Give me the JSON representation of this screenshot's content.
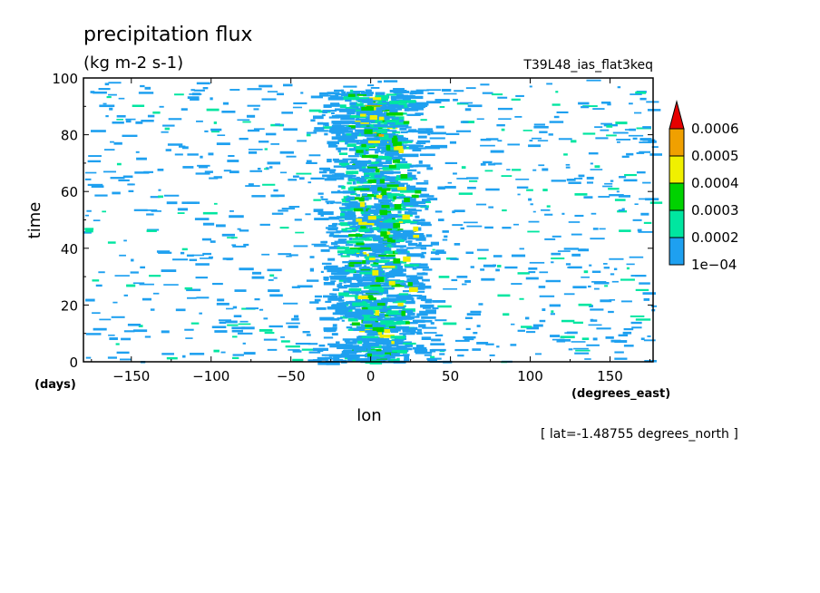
{
  "chart_data": {
    "type": "heatmap",
    "title": "precipitation flux",
    "units": "(kg m-2 s-1)",
    "dataset": "T39L48_ias_flat3keq",
    "xlabel": "lon",
    "x_units": "(degrees_east)",
    "ylabel": "time",
    "y_units": "(days)",
    "footnote": "[ lat=-1.48755 degrees_north ]",
    "xlim": [
      -180,
      177
    ],
    "ylim": [
      0,
      100
    ],
    "x_ticks": [
      -150,
      -100,
      -50,
      0,
      50,
      100,
      150
    ],
    "y_ticks": [
      0,
      20,
      40,
      60,
      80,
      100
    ],
    "colorbar": {
      "levels": [
        "1e-04",
        "0.0002",
        "0.0003",
        "0.0004",
        "0.0005",
        "0.0006"
      ],
      "colors": [
        "#1ea0f0",
        "#00e6a0",
        "#00d200",
        "#f0f000",
        "#f0a000",
        "#e60000"
      ],
      "extend": "max"
    },
    "structure": {
      "core_center_lon": 0,
      "core_halfwidth_deg": 30,
      "peak_values_near_lon": [
        0,
        10,
        20
      ]
    }
  }
}
